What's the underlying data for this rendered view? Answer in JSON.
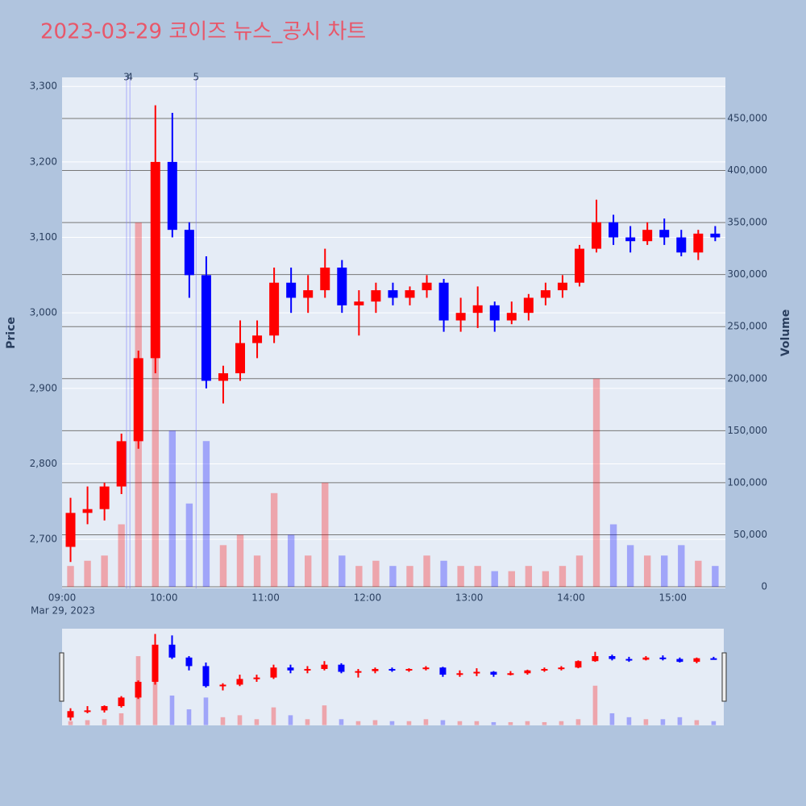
{
  "chart_data": {
    "type": "candlestick",
    "title": "2023-03-29 코이즈 뉴스_공시 차트",
    "y_label": "Price",
    "y2_label": "Volume",
    "x_date_label": "Mar 29, 2023",
    "up_color": "#ff0000",
    "down_color": "#0000ff",
    "x": [
      "2023-03-29 09:00",
      "2023-03-29 09:10",
      "2023-03-29 09:20",
      "2023-03-29 09:30",
      "2023-03-29 09:40",
      "2023-03-29 09:50",
      "2023-03-29 10:00",
      "2023-03-29 10:10",
      "2023-03-29 10:20",
      "2023-03-29 10:30",
      "2023-03-29 10:40",
      "2023-03-29 10:50",
      "2023-03-29 11:00",
      "2023-03-29 11:10",
      "2023-03-29 11:20",
      "2023-03-29 11:30",
      "2023-03-29 11:40",
      "2023-03-29 11:50",
      "2023-03-29 12:00",
      "2023-03-29 12:10",
      "2023-03-29 12:20",
      "2023-03-29 12:30",
      "2023-03-29 12:40",
      "2023-03-29 12:50",
      "2023-03-29 13:00",
      "2023-03-29 13:10",
      "2023-03-29 13:20",
      "2023-03-29 13:30",
      "2023-03-29 13:40",
      "2023-03-29 13:50",
      "2023-03-29 14:00",
      "2023-03-29 14:10",
      "2023-03-29 14:20",
      "2023-03-29 14:30",
      "2023-03-29 14:40",
      "2023-03-29 14:50",
      "2023-03-29 15:00",
      "2023-03-29 15:10",
      "2023-03-29 15:20"
    ],
    "open": [
      2690,
      2735,
      2740,
      2770,
      2830,
      2940,
      3200,
      3110,
      3050,
      2910,
      2920,
      2960,
      2970,
      3040,
      3020,
      3030,
      3060,
      3010,
      3015,
      3030,
      3020,
      3030,
      3040,
      2990,
      3000,
      3010,
      2990,
      3000,
      3020,
      3030,
      3040,
      3085,
      3120,
      3100,
      3095,
      3110,
      3100,
      3080,
      3105
    ],
    "high": [
      2755,
      2770,
      2775,
      2840,
      2950,
      3275,
      3265,
      3120,
      3075,
      2930,
      2990,
      2990,
      3060,
      3060,
      3050,
      3085,
      3070,
      3030,
      3040,
      3040,
      3035,
      3050,
      3045,
      3020,
      3035,
      3015,
      3015,
      3025,
      3040,
      3050,
      3090,
      3150,
      3130,
      3115,
      3120,
      3125,
      3110,
      3110,
      3115
    ],
    "low": [
      2670,
      2720,
      2725,
      2760,
      2820,
      2920,
      3100,
      3020,
      2900,
      2880,
      2910,
      2940,
      2960,
      3000,
      3000,
      3020,
      3000,
      2970,
      3000,
      3010,
      3010,
      3020,
      2975,
      2975,
      2980,
      2975,
      2985,
      2990,
      3010,
      3020,
      3035,
      3080,
      3090,
      3080,
      3090,
      3090,
      3075,
      3070,
      3095
    ],
    "close": [
      2735,
      2740,
      2770,
      2830,
      2940,
      3200,
      3110,
      3050,
      2910,
      2920,
      2960,
      2970,
      3040,
      3020,
      3030,
      3060,
      3010,
      3015,
      3030,
      3020,
      3030,
      3040,
      2990,
      3000,
      3010,
      2990,
      3000,
      3020,
      3030,
      3040,
      3085,
      3120,
      3100,
      3095,
      3110,
      3100,
      3080,
      3105,
      3100
    ],
    "volume": [
      20000,
      25000,
      30000,
      60000,
      350000,
      300000,
      150000,
      80000,
      140000,
      40000,
      50000,
      30000,
      90000,
      50000,
      30000,
      100000,
      30000,
      20000,
      25000,
      20000,
      20000,
      30000,
      25000,
      20000,
      20000,
      15000,
      15000,
      20000,
      15000,
      20000,
      30000,
      200000,
      60000,
      40000,
      30000,
      30000,
      40000,
      25000,
      20000
    ],
    "annotations": [
      {
        "x": "2023-03-29 09:38",
        "label": "3"
      },
      {
        "x": "2023-03-29 09:40",
        "label": "4"
      },
      {
        "x": "2023-03-29 10:19",
        "label": "5"
      }
    ],
    "xlim": [
      "2023-03-29 09:00",
      "2023-03-29 15:31"
    ],
    "xticks": [
      {
        "value": "2023-03-29 09:00",
        "label": "09:00"
      },
      {
        "value": "2023-03-29 10:00",
        "label": "10:00"
      },
      {
        "value": "2023-03-29 11:00",
        "label": "11:00"
      },
      {
        "value": "2023-03-29 12:00",
        "label": "12:00"
      },
      {
        "value": "2023-03-29 13:00",
        "label": "13:00"
      },
      {
        "value": "2023-03-29 14:00",
        "label": "14:00"
      },
      {
        "value": "2023-03-29 15:00",
        "label": "15:00"
      }
    ],
    "ylim": [
      2635,
      3312
    ],
    "yticks": [
      {
        "value": 2700,
        "label": "2,700"
      },
      {
        "value": 2800,
        "label": "2,800"
      },
      {
        "value": 2900,
        "label": "2,900"
      },
      {
        "value": 3000,
        "label": "3,000"
      },
      {
        "value": 3100,
        "label": "3,100"
      },
      {
        "value": 3200,
        "label": "3,200"
      },
      {
        "value": 3300,
        "label": "3,300"
      }
    ],
    "y2lim": [
      -1550,
      489500
    ],
    "y2ticks": [
      0,
      {
        "value": 50000,
        "label": "50,000"
      },
      {
        "value": 100000,
        "label": "100,000"
      },
      {
        "value": 150000,
        "label": "150,000"
      },
      {
        "value": 200000,
        "label": "200,000"
      },
      {
        "value": 250000,
        "label": "250,000"
      },
      {
        "value": 300000,
        "label": "300,000"
      },
      {
        "value": 350000,
        "label": "350,000"
      },
      {
        "value": 400000,
        "label": "400,000"
      },
      {
        "value": 450000,
        "label": "450,000"
      }
    ]
  }
}
